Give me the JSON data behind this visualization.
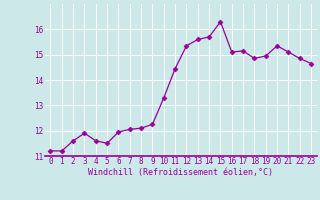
{
  "x": [
    0,
    1,
    2,
    3,
    4,
    5,
    6,
    7,
    8,
    9,
    10,
    11,
    12,
    13,
    14,
    15,
    16,
    17,
    18,
    19,
    20,
    21,
    22,
    23
  ],
  "y": [
    11.2,
    11.2,
    11.6,
    11.9,
    11.6,
    11.5,
    11.95,
    12.05,
    12.1,
    12.25,
    13.3,
    14.45,
    15.35,
    15.6,
    15.7,
    16.3,
    15.1,
    15.15,
    14.85,
    14.95,
    15.35,
    15.1,
    14.85,
    14.65
  ],
  "xlabel": "Windchill (Refroidissement éolien,°C)",
  "ylim": [
    11,
    17
  ],
  "xlim_min": -0.5,
  "xlim_max": 23.5,
  "yticks": [
    11,
    12,
    13,
    14,
    15,
    16
  ],
  "xticks": [
    0,
    1,
    2,
    3,
    4,
    5,
    6,
    7,
    8,
    9,
    10,
    11,
    12,
    13,
    14,
    15,
    16,
    17,
    18,
    19,
    20,
    21,
    22,
    23
  ],
  "line_color": "#990099",
  "marker": "D",
  "marker_size": 2.5,
  "background_color": "#cce8e8",
  "grid_color": "#ffffff",
  "tick_color": "#990099",
  "label_color": "#990099",
  "font_family": "monospace",
  "tick_fontsize": 5.5,
  "label_fontsize": 6.0
}
